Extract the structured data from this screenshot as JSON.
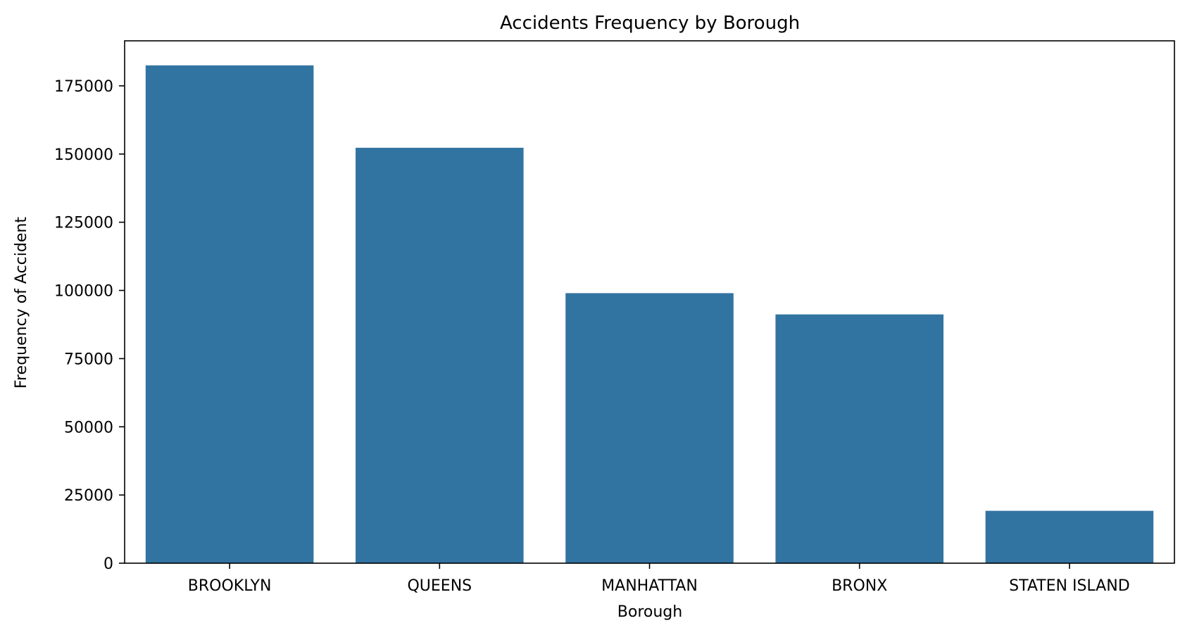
{
  "chart_data": {
    "type": "bar",
    "title": "Accidents Frequency by Borough",
    "xlabel": "Borough",
    "ylabel": "Frequency of Accident",
    "categories": [
      "BROOKLYN",
      "QUEENS",
      "MANHATTAN",
      "BRONX",
      "STATEN ISLAND"
    ],
    "values": [
      182500,
      152300,
      99000,
      91200,
      19200
    ],
    "ylim": [
      0,
      191500
    ],
    "yticks": [
      0,
      25000,
      50000,
      75000,
      100000,
      125000,
      150000,
      175000
    ],
    "ytick_labels": [
      "0",
      "25000",
      "50000",
      "75000",
      "100000",
      "125000",
      "150000",
      "175000"
    ],
    "bar_color": "#3274a1",
    "grid": false,
    "legend": "none"
  }
}
